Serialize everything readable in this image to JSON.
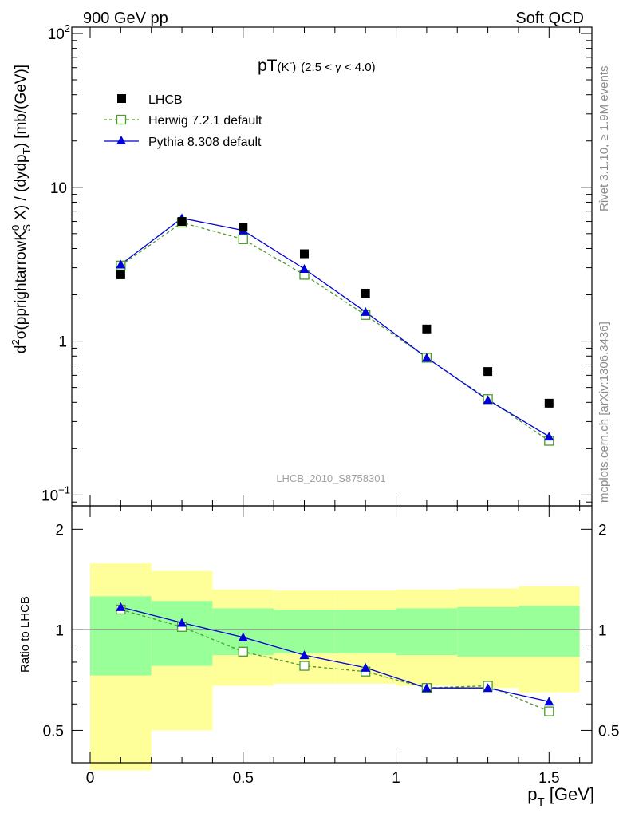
{
  "header": {
    "left": "900 GeV pp",
    "right": "Soft QCD"
  },
  "side_text": {
    "rivet": "Rivet 3.1.10, ≥ 1.9M events",
    "mcplots": "mcplots.cern.ch [arXiv:1306.3436]"
  },
  "watermark": "LHCB_2010_S8758301",
  "chart_data": {
    "type": "line",
    "title": {
      "main": "pT",
      "particle": "(K",
      "particle_sup": "-",
      "particle_close": ")",
      "range": "(2.5 < y < 4.0)"
    },
    "yaxis_main": {
      "scale": "log",
      "ylim": [
        0.085,
        110
      ],
      "ticks": [
        0.1,
        1,
        10,
        100
      ],
      "tick_labels": [
        {
          "base": "10",
          "sup": "−1"
        },
        {
          "base": "1",
          "sup": ""
        },
        {
          "base": "10",
          "sup": ""
        },
        {
          "base": "10",
          "sup": "2"
        }
      ],
      "label_prefix": "d",
      "label_prefix_sup": "2",
      "label_mid": "σ(pprightarrowK",
      "label_k_sup": "0",
      "label_k_sub": "S",
      "label_mid2": " X) / (dydp",
      "label_pt_sub": "T",
      "label_suffix": ") [mb/(GeV)]"
    },
    "yaxis_ratio": {
      "scale": "log",
      "ylim": [
        0.4,
        2.35
      ],
      "ticks": [
        0.5,
        1,
        2
      ],
      "tick_labels": [
        "0.5",
        "1",
        "2"
      ],
      "label": "Ratio to LHCB"
    },
    "xaxis": {
      "xlim": [
        -0.06,
        1.64
      ],
      "ticks": [
        0,
        0.5,
        1,
        1.5
      ],
      "tick_labels": [
        "0",
        "0.5",
        "1",
        "1.5"
      ],
      "label_base": "p",
      "label_sub": "T",
      "label_unit": " [GeV]"
    },
    "x": [
      0.1,
      0.3,
      0.5,
      0.7,
      0.9,
      1.1,
      1.3,
      1.5
    ],
    "series": [
      {
        "name": "LHCB",
        "style": "data",
        "color": "#000000",
        "values": [
          2.7,
          6.0,
          5.5,
          3.7,
          2.05,
          1.2,
          0.635,
          0.395
        ]
      },
      {
        "name": "Herwig 7.2.1 default",
        "style": "dashed-open-square",
        "color": "#4c9a2a",
        "values": [
          3.1,
          5.9,
          4.6,
          2.7,
          1.48,
          0.78,
          0.42,
          0.225
        ],
        "ratio": [
          1.15,
          1.02,
          0.86,
          0.78,
          0.75,
          0.67,
          0.68,
          0.57
        ]
      },
      {
        "name": "Pythia 8.308 default",
        "style": "solid-filled-triangle",
        "color": "#0000d8",
        "values": [
          3.15,
          6.3,
          5.25,
          2.95,
          1.55,
          0.78,
          0.415,
          0.24
        ],
        "ratio": [
          1.17,
          1.05,
          0.95,
          0.84,
          0.77,
          0.67,
          0.67,
          0.61
        ]
      }
    ],
    "bands": {
      "bins": [
        [
          0.0,
          0.2
        ],
        [
          0.2,
          0.4
        ],
        [
          0.4,
          0.6
        ],
        [
          0.6,
          0.8
        ],
        [
          0.8,
          1.0
        ],
        [
          1.0,
          1.2
        ],
        [
          1.2,
          1.4
        ],
        [
          1.4,
          1.6
        ]
      ],
      "inner": [
        [
          0.73,
          1.26
        ],
        [
          0.78,
          1.22
        ],
        [
          0.84,
          1.16
        ],
        [
          0.85,
          1.15
        ],
        [
          0.85,
          1.15
        ],
        [
          0.84,
          1.16
        ],
        [
          0.83,
          1.17
        ],
        [
          0.83,
          1.18
        ]
      ],
      "outer": [
        [
          0.38,
          1.58
        ],
        [
          0.5,
          1.5
        ],
        [
          0.68,
          1.32
        ],
        [
          0.69,
          1.31
        ],
        [
          0.69,
          1.31
        ],
        [
          0.68,
          1.32
        ],
        [
          0.67,
          1.33
        ],
        [
          0.65,
          1.35
        ]
      ],
      "inner_color": "#99ff99",
      "outer_color": "#ffff99"
    },
    "reference_line": 1
  }
}
